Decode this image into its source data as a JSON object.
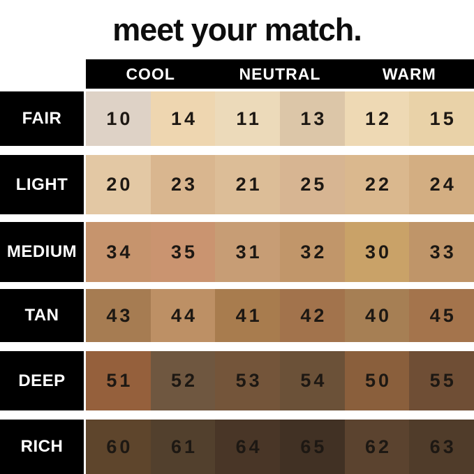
{
  "title": "meet your match.",
  "header": {
    "columns": [
      "COOL",
      "NEUTRAL",
      "WARM"
    ]
  },
  "colors": {
    "background": "#ffffff",
    "bar": "#000000",
    "header_text": "#ffffff",
    "number_text": "#1d1813",
    "title_text": "#0d0d0d"
  },
  "rows": [
    {
      "label": "FAIR",
      "swatches": [
        {
          "num": "10",
          "color": "#ded2c6"
        },
        {
          "num": "14",
          "color": "#eed6b0"
        },
        {
          "num": "11",
          "color": "#ecdaba"
        },
        {
          "num": "13",
          "color": "#dcc6a8"
        },
        {
          "num": "12",
          "color": "#eed9b4"
        },
        {
          "num": "15",
          "color": "#e9d2a8"
        }
      ]
    },
    {
      "label": "LIGHT",
      "swatches": [
        {
          "num": "20",
          "color": "#e3c8a4"
        },
        {
          "num": "23",
          "color": "#d9b68f"
        },
        {
          "num": "21",
          "color": "#dcbd97"
        },
        {
          "num": "25",
          "color": "#d7b592"
        },
        {
          "num": "22",
          "color": "#dab88e"
        },
        {
          "num": "24",
          "color": "#d3ae82"
        }
      ]
    },
    {
      "label": "MEDIUM",
      "swatches": [
        {
          "num": "34",
          "color": "#c6946d"
        },
        {
          "num": "35",
          "color": "#ca9470"
        },
        {
          "num": "31",
          "color": "#c79d75"
        },
        {
          "num": "32",
          "color": "#c1966a"
        },
        {
          "num": "30",
          "color": "#c9a268"
        },
        {
          "num": "33",
          "color": "#bf9569"
        }
      ]
    },
    {
      "label": "TAN",
      "swatches": [
        {
          "num": "43",
          "color": "#a67c52"
        },
        {
          "num": "44",
          "color": "#bd9065"
        },
        {
          "num": "41",
          "color": "#a87c4e"
        },
        {
          "num": "42",
          "color": "#a2734c"
        },
        {
          "num": "40",
          "color": "#a67f54"
        },
        {
          "num": "45",
          "color": "#a4744c"
        }
      ]
    },
    {
      "label": "DEEP",
      "swatches": [
        {
          "num": "51",
          "color": "#95603c"
        },
        {
          "num": "52",
          "color": "#6f5740"
        },
        {
          "num": "53",
          "color": "#74553a"
        },
        {
          "num": "54",
          "color": "#6b5138"
        },
        {
          "num": "50",
          "color": "#8a5f3c"
        },
        {
          "num": "55",
          "color": "#6f4e35"
        }
      ]
    },
    {
      "label": "RICH",
      "swatches": [
        {
          "num": "60",
          "color": "#5e452c"
        },
        {
          "num": "61",
          "color": "#52402d"
        },
        {
          "num": "64",
          "color": "#493627"
        },
        {
          "num": "65",
          "color": "#413124"
        },
        {
          "num": "62",
          "color": "#5b432f"
        },
        {
          "num": "63",
          "color": "#503c2a"
        }
      ]
    }
  ],
  "chart_data": {
    "type": "table",
    "title": "meet your match.",
    "column_groups": [
      "COOL",
      "COOL",
      "NEUTRAL",
      "NEUTRAL",
      "WARM",
      "WARM"
    ],
    "row_labels": [
      "FAIR",
      "LIGHT",
      "MEDIUM",
      "TAN",
      "DEEP",
      "RICH"
    ],
    "cells": [
      [
        10,
        14,
        11,
        13,
        12,
        15
      ],
      [
        20,
        23,
        21,
        25,
        22,
        24
      ],
      [
        34,
        35,
        31,
        32,
        30,
        33
      ],
      [
        43,
        44,
        41,
        42,
        40,
        45
      ],
      [
        51,
        52,
        53,
        54,
        50,
        55
      ],
      [
        60,
        61,
        64,
        65,
        62,
        63
      ]
    ],
    "cell_colors": [
      [
        "#ded2c6",
        "#eed6b0",
        "#ecdaba",
        "#dcc6a8",
        "#eed9b4",
        "#e9d2a8"
      ],
      [
        "#e3c8a4",
        "#d9b68f",
        "#dcbd97",
        "#d7b592",
        "#dab88e",
        "#d3ae82"
      ],
      [
        "#c6946d",
        "#ca9470",
        "#c79d75",
        "#c1966a",
        "#c9a268",
        "#bf9569"
      ],
      [
        "#a67c52",
        "#bd9065",
        "#a87c4e",
        "#a2734c",
        "#a67f54",
        "#a4744c"
      ],
      [
        "#95603c",
        "#6f5740",
        "#74553a",
        "#6b5138",
        "#8a5f3c",
        "#6f4e35"
      ],
      [
        "#5e452c",
        "#52402d",
        "#493627",
        "#413124",
        "#5b432f",
        "#503c2a"
      ]
    ]
  }
}
